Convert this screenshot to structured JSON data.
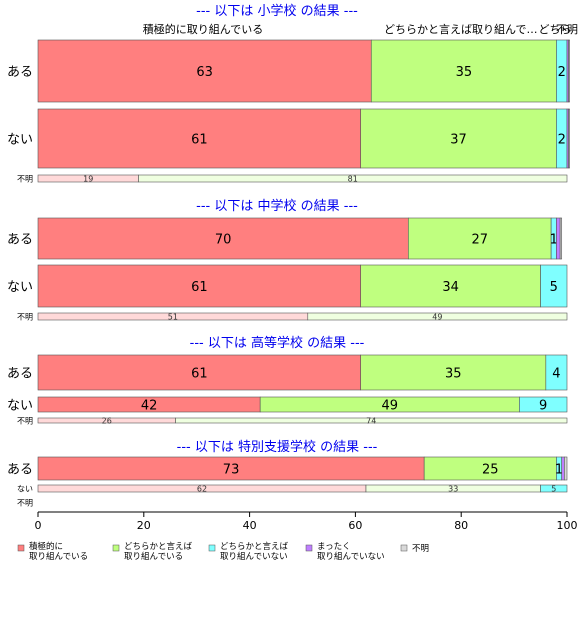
{
  "chart_data": {
    "type": "bar",
    "orientation": "horizontal-stacked-percent",
    "xlim": [
      0,
      100
    ],
    "xticks": [
      0,
      20,
      40,
      60,
      80,
      100
    ],
    "top_labels": [
      "積極的に取り組んでいる",
      "どちらかと言えば取り組んで…",
      "どちら",
      "不明"
    ],
    "categories_legend": [
      {
        "label": "積極的に\n取り組んでいる",
        "color": "#ff7f7f"
      },
      {
        "label": "どちらかと言えば\n取り組んでいる",
        "color": "#bfff7f"
      },
      {
        "label": "どちらかと言えば\n取り組んでいない",
        "color": "#7fffff"
      },
      {
        "label": "まったく\n取り組んでいない",
        "color": "#bf7fff"
      },
      {
        "label": "不明",
        "color": "#d9d9d9"
      }
    ],
    "groups": [
      {
        "title": "--- 以下は 小学校 の結果 ---",
        "rows": [
          {
            "label": "ある",
            "values": [
              63,
              35,
              2,
              0.3,
              0.2
            ],
            "labels": [
              "63",
              "35",
              "2",
              "",
              ""
            ]
          },
          {
            "label": "ない",
            "values": [
              61,
              37,
              2,
              0.3,
              0.2
            ],
            "labels": [
              "61",
              "37",
              "2",
              "",
              ""
            ]
          },
          {
            "label": "不明",
            "small": true,
            "values": [
              19,
              81,
              0,
              0,
              0
            ],
            "labels": [
              "19",
              "81",
              "",
              "",
              ""
            ]
          }
        ]
      },
      {
        "title": "--- 以下は 中学校 の結果 ---",
        "rows": [
          {
            "label": "ある",
            "values": [
              70,
              27,
              1,
              0.7,
              0.3
            ],
            "labels": [
              "70",
              "27",
              "1",
              "",
              ""
            ]
          },
          {
            "label": "ない",
            "values": [
              61,
              34,
              5,
              0,
              0
            ],
            "labels": [
              "61",
              "34",
              "5",
              "",
              ""
            ]
          },
          {
            "label": "不明",
            "small": true,
            "values": [
              51,
              49,
              0,
              0,
              0
            ],
            "labels": [
              "51",
              "49",
              "",
              "",
              ""
            ]
          }
        ]
      },
      {
        "title": "--- 以下は 高等学校 の結果 ---",
        "rows": [
          {
            "label": "ある",
            "values": [
              61,
              35,
              4,
              0,
              0
            ],
            "labels": [
              "61",
              "35",
              "4",
              "",
              ""
            ]
          },
          {
            "label": "ない",
            "values": [
              42,
              49,
              9,
              0,
              0
            ],
            "labels": [
              "42",
              "49",
              "9",
              "",
              ""
            ]
          },
          {
            "label": "不明",
            "small": true,
            "values": [
              26,
              74,
              0,
              0,
              0
            ],
            "labels": [
              "26",
              "74",
              "",
              "",
              ""
            ]
          }
        ]
      },
      {
        "title": "--- 以下は 特別支援学校 の結果 ---",
        "rows": [
          {
            "label": "ある",
            "values": [
              73,
              25,
              1,
              0.5,
              0.5
            ],
            "labels": [
              "73",
              "25",
              "1",
              "",
              ""
            ]
          },
          {
            "label": "ない",
            "small": true,
            "values": [
              62,
              33,
              5,
              0,
              0
            ],
            "labels": [
              "62",
              "33",
              "5",
              "",
              ""
            ]
          },
          {
            "label": "不明",
            "small": true,
            "values": [
              0,
              0,
              0,
              0,
              0
            ],
            "labels": [
              "",
              "",
              "",
              "",
              ""
            ]
          }
        ]
      }
    ]
  }
}
